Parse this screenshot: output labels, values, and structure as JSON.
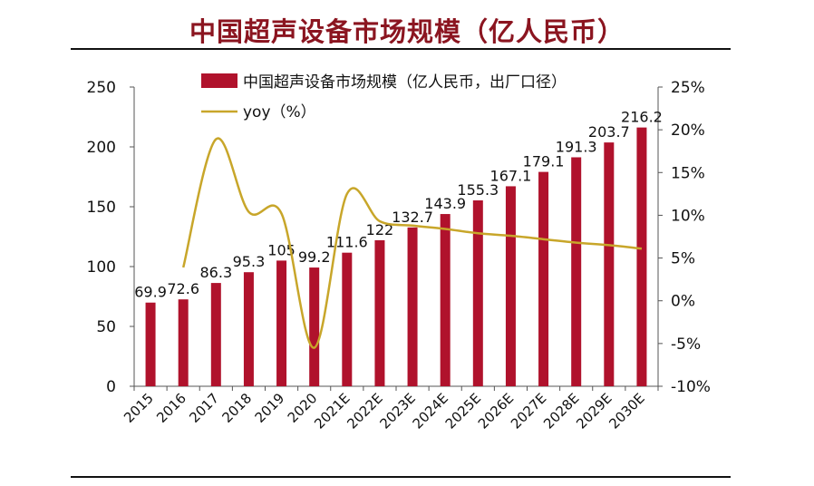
{
  "title": "中国超声设备市场规模（亿人民币）",
  "colors": {
    "title": "#8b1520",
    "bar": "#b0122c",
    "line": "#c8a62a",
    "axis": "#555555"
  },
  "chart_data": {
    "type": "bar",
    "categories": [
      "2015",
      "2016",
      "2017",
      "2018",
      "2019",
      "2020",
      "2021E",
      "2022E",
      "2023E",
      "2024E",
      "2025E",
      "2026E",
      "2027E",
      "2028E",
      "2029E",
      "2030E"
    ],
    "series": [
      {
        "name": "中国超声设备市场规模（亿人民币，出厂口径）",
        "type": "bar",
        "axis": "left",
        "values": [
          69.9,
          72.6,
          86.3,
          95.3,
          105,
          99.2,
          111.6,
          122,
          132.7,
          143.9,
          155.3,
          167.1,
          179.1,
          191.3,
          203.7,
          216.2
        ],
        "labels": [
          "69.9",
          "72.6",
          "86.3",
          "95.3",
          "105",
          "99.2",
          "111.6",
          "122",
          "132.7",
          "143.9",
          "155.3",
          "167.1",
          "179.1",
          "191.3",
          "203.7",
          "216.2"
        ]
      },
      {
        "name": "yoy（%）",
        "type": "line",
        "axis": "right",
        "values": [
          null,
          3.9,
          18.9,
          10.4,
          10.2,
          -5.5,
          12.5,
          9.3,
          8.8,
          8.4,
          7.9,
          7.6,
          7.2,
          6.8,
          6.5,
          6.1
        ]
      }
    ],
    "y_left": {
      "min": 0,
      "max": 250,
      "ticks": [
        "0",
        "50",
        "100",
        "150",
        "200",
        "250"
      ]
    },
    "y_right": {
      "min": -10,
      "max": 25,
      "ticks": [
        "-10%",
        "-5%",
        "0%",
        "5%",
        "10%",
        "15%",
        "20%",
        "25%"
      ]
    },
    "legend_position": "top",
    "grid": false
  }
}
